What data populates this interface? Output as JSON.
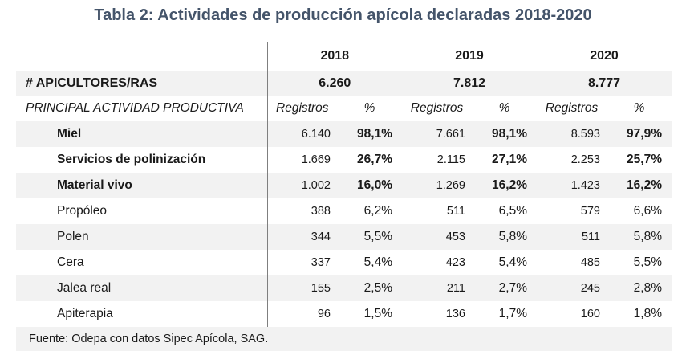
{
  "title": "Tabla 2: Actividades de producción apícola declaradas 2018-2020",
  "years": [
    "2018",
    "2019",
    "2020"
  ],
  "apicultores": {
    "label": "# APICULTORES/RAS",
    "values": [
      "6.260",
      "7.812",
      "8.777"
    ]
  },
  "subheader": {
    "label": "PRINCIPAL ACTIVIDAD PRODUCTIVA",
    "registros": "Registros",
    "pct": "%"
  },
  "rows": [
    {
      "label": "Miel",
      "bold": true,
      "values": [
        [
          "6.140",
          "98,1%"
        ],
        [
          "7.661",
          "98,1%"
        ],
        [
          "8.593",
          "97,9%"
        ]
      ]
    },
    {
      "label": "Servicios de polinización",
      "bold": true,
      "values": [
        [
          "1.669",
          "26,7%"
        ],
        [
          "2.115",
          "27,1%"
        ],
        [
          "2.253",
          "25,7%"
        ]
      ]
    },
    {
      "label": "Material vivo",
      "bold": true,
      "values": [
        [
          "1.002",
          "16,0%"
        ],
        [
          "1.269",
          "16,2%"
        ],
        [
          "1.423",
          "16,2%"
        ]
      ]
    },
    {
      "label": "Propóleo",
      "bold": false,
      "values": [
        [
          "388",
          "6,2%"
        ],
        [
          "511",
          "6,5%"
        ],
        [
          "579",
          "6,6%"
        ]
      ]
    },
    {
      "label": "Polen",
      "bold": false,
      "values": [
        [
          "344",
          "5,5%"
        ],
        [
          "453",
          "5,8%"
        ],
        [
          "511",
          "5,8%"
        ]
      ]
    },
    {
      "label": "Cera",
      "bold": false,
      "values": [
        [
          "337",
          "5,4%"
        ],
        [
          "423",
          "5,4%"
        ],
        [
          "485",
          "5,5%"
        ]
      ]
    },
    {
      "label": "Jalea real",
      "bold": false,
      "values": [
        [
          "155",
          "2,5%"
        ],
        [
          "211",
          "2,7%"
        ],
        [
          "245",
          "2,8%"
        ]
      ]
    },
    {
      "label": "Apiterapia",
      "bold": false,
      "values": [
        [
          "96",
          "1,5%"
        ],
        [
          "136",
          "1,7%"
        ],
        [
          "160",
          "1,8%"
        ]
      ]
    }
  ],
  "source": "Fuente: Odepa con datos Sipec Apícola, SAG."
}
